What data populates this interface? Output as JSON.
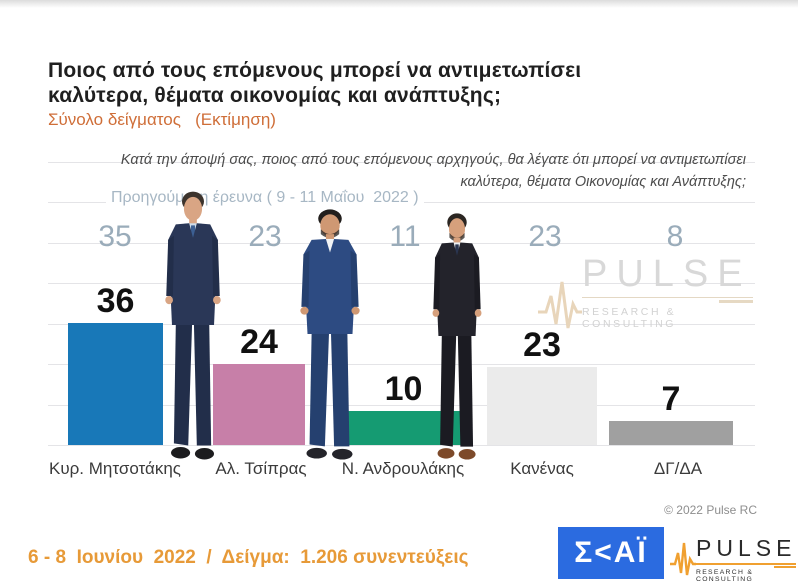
{
  "header": {
    "title_line1": "Ποιος από τους επόμενους μπορεί να αντιμετωπίσει",
    "title_line2": "καλύτερα, θέματα οικονομίας και ανάπτυξης;",
    "subtitle": "Σύνολο δείγματος   (Εκτίμηση)",
    "subtitle_color": "#cf6e38"
  },
  "question": {
    "line1": "Κατά την άποψή σας, ποιος  από τους επόμενους αρχηγούς, θα λέγατε ότι μπορεί να αντιμετωπίσει",
    "line2": "καλύτερα, θέματα Οικονομίας και Ανάπτυξης;"
  },
  "chart_data": {
    "type": "bar",
    "title": "Ποιος από τους επόμενους μπορεί να αντιμετωπίσει καλύτερα, θέματα οικονομίας και ανάπτυξης;",
    "categories": [
      "Κυρ. Μητσοτάκης",
      "Αλ. Τσίπρας",
      "Ν. Ανδρουλάκης",
      "Κανένας",
      "ΔΓ/ΔΑ"
    ],
    "series": [
      {
        "name": "Εκτίμηση (6 - 8 Ιουνίου 2022)",
        "values": [
          36,
          24,
          10,
          23,
          7
        ],
        "style": "bars with bold black value labels"
      },
      {
        "name": "Προηγούμενη έρευνα ( 9 - 11 Μαΐου 2022 )",
        "values": [
          35,
          23,
          11,
          23,
          8
        ],
        "style": "gray numbers shown above chart"
      }
    ],
    "previous_survey_label": "Προηγούμενη έρευνα ( 9 - 11 Μαΐου  2022 )",
    "bar_colors": [
      "#1878b8",
      "#c77fa8",
      "#159b72",
      "#ebebeb",
      "#a0a0a0"
    ],
    "value_label_color": "#111111",
    "previous_value_color": "#9aacba",
    "ylim": [
      0,
      42
    ],
    "grid": "horizontal light gray lines",
    "legend_position": "none"
  },
  "watermark": {
    "brand": "PULSE",
    "tagline": "RESEARCH & CONSULTING"
  },
  "copyright": "© 2022 Pulse RC",
  "footer": {
    "fieldwork": "6 - 8  Ιουνίου  2022  /  Δείγμα:  1.206 συνεντεύξεις",
    "fieldwork_color": "#e79a38",
    "skai_logo_text": "Σ<ΑΪ",
    "skai_logo_bg": "#2b6be0",
    "pulse_logo": {
      "brand": "PULSE",
      "tagline": "RESEARCH & CONSULTING",
      "accent": "#f0a030"
    }
  }
}
